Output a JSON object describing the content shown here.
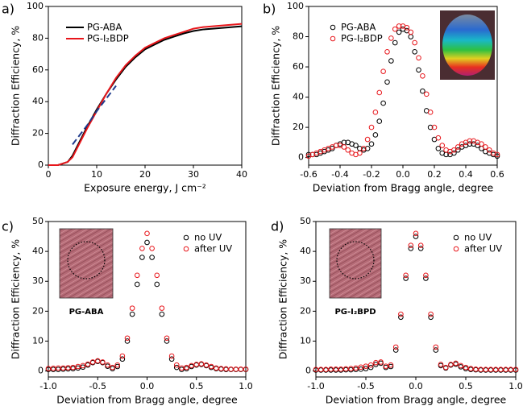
{
  "chart_data": [
    {
      "type": "line",
      "label": "a)",
      "xlabel": "Exposure energy, J cm⁻²",
      "ylabel": "Diffraction Efficiency, %",
      "x": [
        0,
        2,
        4,
        5,
        6,
        8,
        10,
        12,
        14,
        16,
        18,
        20,
        22,
        24,
        26,
        28,
        30,
        32,
        34,
        36,
        38,
        40
      ],
      "series": [
        {
          "name": "PG-ABA",
          "color": "#000000",
          "values": [
            0,
            0,
            2,
            6,
            12,
            24,
            35,
            45,
            54,
            62,
            68,
            73,
            76,
            79,
            81,
            83,
            84.5,
            85.5,
            86,
            86.5,
            87,
            87.5
          ]
        },
        {
          "name": "PG-I₂BDP",
          "color": "#e8161b",
          "values": [
            0,
            0,
            2,
            5,
            11,
            23,
            34,
            45,
            55,
            63,
            69,
            74,
            77,
            80,
            82,
            84,
            86,
            87,
            87.5,
            88,
            88.5,
            89
          ]
        },
        {
          "color": "#1f3b8c",
          "dashed": true,
          "values": [
            null,
            null,
            null,
            13,
            17,
            25,
            34,
            42,
            50,
            null,
            null,
            null,
            null,
            null,
            null,
            null,
            null,
            null,
            null,
            null,
            null,
            null
          ]
        }
      ],
      "xlim": [
        0,
        40
      ],
      "xticks": [
        0,
        10,
        20,
        30,
        40
      ],
      "ylim": [
        0,
        100
      ],
      "yticks": [
        0,
        20,
        40,
        60,
        80,
        100
      ],
      "legend": "upper left"
    },
    {
      "type": "scatter",
      "label": "b)",
      "xlabel": "Deviation from Bragg angle, degree",
      "ylabel": "Diffraction Efficiency, %",
      "x": [
        -0.6,
        -0.575,
        -0.55,
        -0.525,
        -0.5,
        -0.475,
        -0.45,
        -0.425,
        -0.4,
        -0.375,
        -0.35,
        -0.325,
        -0.3,
        -0.275,
        -0.25,
        -0.225,
        -0.2,
        -0.175,
        -0.15,
        -0.125,
        -0.1,
        -0.075,
        -0.05,
        -0.025,
        0,
        0.025,
        0.05,
        0.075,
        0.1,
        0.125,
        0.15,
        0.175,
        0.2,
        0.225,
        0.25,
        0.275,
        0.3,
        0.325,
        0.35,
        0.375,
        0.4,
        0.425,
        0.45,
        0.475,
        0.5,
        0.525,
        0.55,
        0.575,
        0.6
      ],
      "series": [
        {
          "name": "PG-ABA",
          "color": "#000000",
          "values": [
            2,
            2,
            2,
            3,
            4,
            5,
            6,
            8,
            9,
            10,
            10,
            9,
            8,
            6,
            5,
            6,
            9,
            15,
            24,
            36,
            50,
            64,
            76,
            83,
            85,
            84,
            80,
            70,
            58,
            44,
            31,
            20,
            12,
            6,
            3,
            2,
            2,
            3,
            5,
            7,
            8,
            9,
            9,
            8,
            6,
            4,
            3,
            2,
            1
          ]
        },
        {
          "name": "PG-I₂BDP",
          "color": "#e8161b",
          "values": [
            1,
            2,
            3,
            4,
            5,
            6,
            7,
            8,
            8,
            7,
            5,
            3,
            2,
            3,
            6,
            12,
            20,
            30,
            43,
            57,
            70,
            79,
            85,
            87,
            87,
            86,
            83,
            76,
            66,
            54,
            42,
            30,
            20,
            13,
            8,
            5,
            4,
            5,
            7,
            9,
            10,
            11,
            11,
            10,
            9,
            7,
            5,
            3,
            2
          ]
        }
      ],
      "xlim": [
        -0.6,
        0.6
      ],
      "xticks": [
        -0.6,
        -0.4,
        -0.2,
        {
          "value": 0,
          "label": "0.0"
        },
        0.2,
        0.4,
        0.6
      ],
      "ylim": [
        -5,
        100
      ],
      "yticks": [
        0,
        20,
        40,
        60,
        80,
        100
      ],
      "legend": "upper left"
    },
    {
      "type": "scatter",
      "label": "c)",
      "annotation": "PG-ABA",
      "xlabel": "Deviation from Bragg angle, degree",
      "ylabel": "Diffraction Efficiency, %",
      "x": [
        -1,
        -0.95,
        -0.9,
        -0.85,
        -0.8,
        -0.75,
        -0.7,
        -0.65,
        -0.6,
        -0.55,
        -0.5,
        -0.45,
        -0.4,
        -0.35,
        -0.3,
        -0.25,
        -0.2,
        -0.15,
        -0.1,
        -0.05,
        0,
        0.05,
        0.1,
        0.15,
        0.2,
        0.25,
        0.3,
        0.35,
        0.4,
        0.45,
        0.5,
        0.55,
        0.6,
        0.65,
        0.7,
        0.75,
        0.8,
        0.85,
        0.9,
        0.95,
        1
      ],
      "series": [
        {
          "name": "no UV",
          "color": "#000000",
          "values": [
            0.5,
            0.5,
            0.5,
            0.6,
            0.7,
            0.8,
            1,
            1.3,
            2,
            2.8,
            3.2,
            2.8,
            1.6,
            0.8,
            1.5,
            4,
            10,
            19,
            29,
            38,
            43,
            38,
            29,
            19,
            10,
            4,
            1.2,
            0.5,
            0.8,
            1.5,
            2,
            2.2,
            1.8,
            1.2,
            0.8,
            0.6,
            0.5,
            0.5,
            0.5,
            0.5,
            0.5
          ]
        },
        {
          "name": "after UV",
          "color": "#e8161b",
          "values": [
            0.8,
            0.9,
            1,
            1,
            1.1,
            1.2,
            1.5,
            1.8,
            2.3,
            3,
            3.4,
            3,
            2,
            1.2,
            2,
            5,
            11,
            21,
            32,
            41,
            46,
            41,
            32,
            21,
            11,
            5,
            2,
            1,
            1.2,
            1.8,
            2.2,
            2.4,
            2,
            1.5,
            1,
            0.8,
            0.7,
            0.6,
            0.6,
            0.6,
            0.6
          ]
        }
      ],
      "xlim": [
        -1,
        1
      ],
      "xticks": [
        {
          "value": -1,
          "label": "-1.0"
        },
        -0.5,
        {
          "value": 0,
          "label": "0.0"
        },
        0.5,
        {
          "value": 1,
          "label": "1.0"
        }
      ],
      "ylim": [
        -2,
        50
      ],
      "yticks": [
        0,
        10,
        20,
        30,
        40,
        50
      ],
      "legend": "upper right"
    },
    {
      "type": "scatter",
      "label": "d)",
      "annotation": "PG-I₂BPD",
      "xlabel": "Deviation from Bragg angle, degree",
      "ylabel": "Diffraction Efficiency, %",
      "x": [
        -1,
        -0.95,
        -0.9,
        -0.85,
        -0.8,
        -0.75,
        -0.7,
        -0.65,
        -0.6,
        -0.55,
        -0.5,
        -0.45,
        -0.4,
        -0.35,
        -0.3,
        -0.25,
        -0.2,
        -0.15,
        -0.1,
        -0.05,
        0,
        0.05,
        0.1,
        0.15,
        0.2,
        0.25,
        0.3,
        0.35,
        0.4,
        0.45,
        0.5,
        0.55,
        0.6,
        0.65,
        0.7,
        0.75,
        0.8,
        0.85,
        0.9,
        0.95,
        1
      ],
      "series": [
        {
          "name": "no UV",
          "color": "#000000",
          "values": [
            0.3,
            0.3,
            0.3,
            0.3,
            0.3,
            0.3,
            0.4,
            0.4,
            0.5,
            0.6,
            0.8,
            1.2,
            2.2,
            2.6,
            1.2,
            1.5,
            7,
            18,
            31,
            41,
            45,
            41,
            31,
            18,
            7,
            1.8,
            1,
            2,
            2.3,
            1.4,
            0.8,
            0.5,
            0.4,
            0.3,
            0.3,
            0.3,
            0.3,
            0.3,
            0.3,
            0.3,
            0.3
          ]
        },
        {
          "name": "after UV",
          "color": "#e8161b",
          "values": [
            0.5,
            0.5,
            0.5,
            0.6,
            0.6,
            0.6,
            0.7,
            0.8,
            1,
            1.3,
            1.6,
            2,
            2.8,
            3,
            1.6,
            2,
            8,
            19,
            32,
            42,
            46,
            42,
            32,
            19,
            8,
            2.2,
            1.2,
            2.2,
            2.6,
            1.8,
            1.2,
            0.8,
            0.6,
            0.5,
            0.5,
            0.5,
            0.5,
            0.5,
            0.5,
            0.5,
            0.5
          ]
        }
      ],
      "xlim": [
        -1,
        1
      ],
      "xticks": [
        {
          "value": -1,
          "label": "-1.0"
        },
        -0.5,
        {
          "value": 0,
          "label": "0.0"
        },
        0.5,
        {
          "value": 1,
          "label": "1.0"
        }
      ],
      "ylim": [
        -2,
        50
      ],
      "yticks": [
        0,
        10,
        20,
        30,
        40,
        50
      ],
      "legend": "upper right"
    }
  ]
}
